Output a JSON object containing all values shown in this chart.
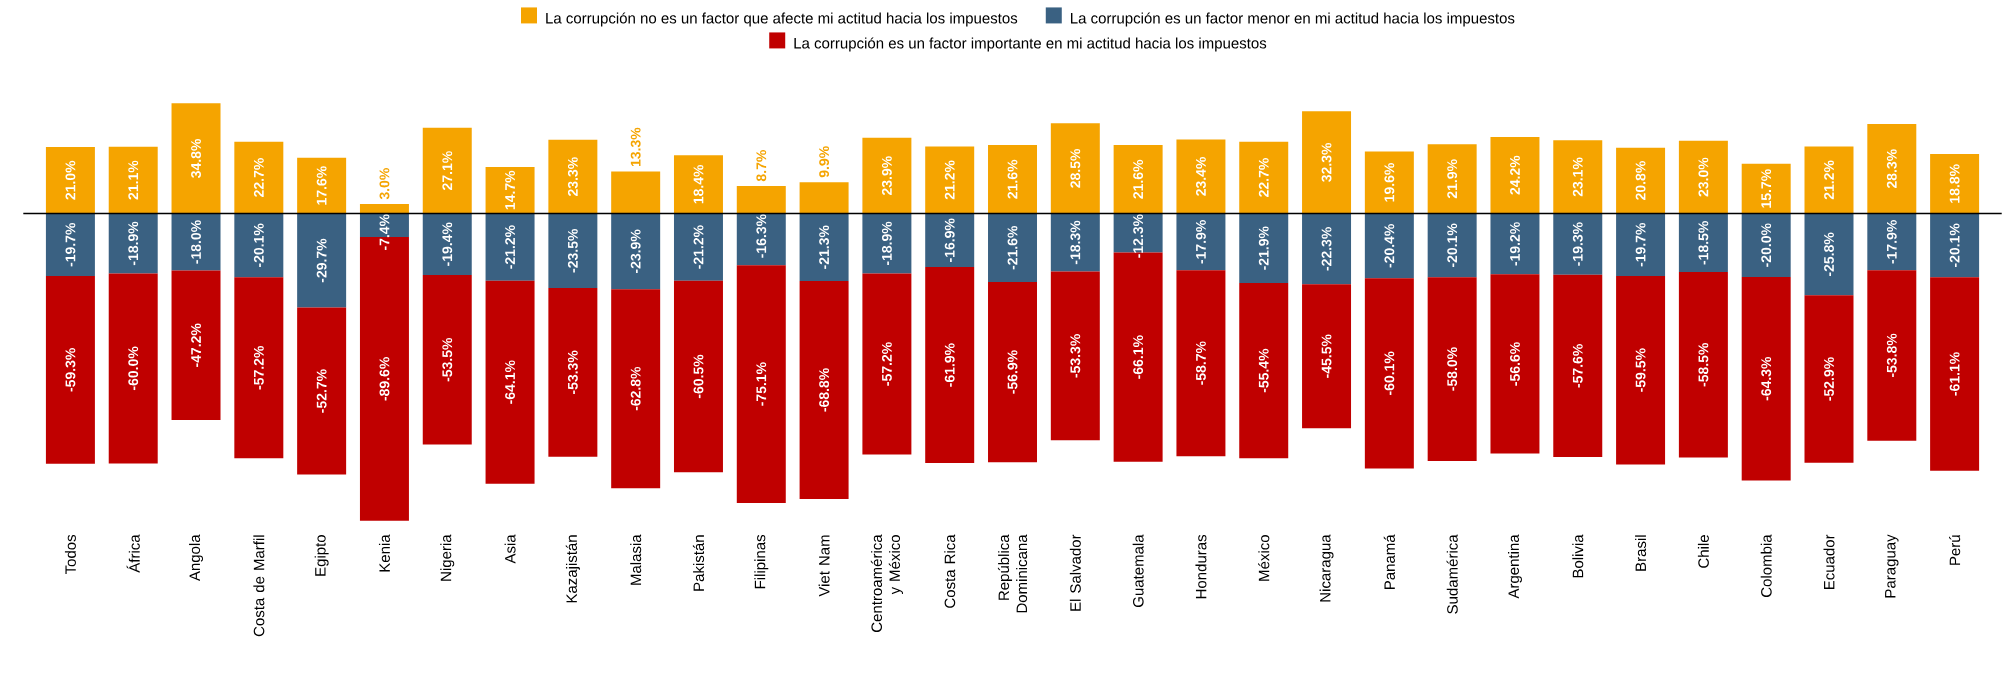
{
  "chart_data": {
    "type": "bar",
    "stacked": true,
    "legend": "top",
    "tick_labels": "x",
    "categories": [
      "Todos",
      "África",
      "Angola",
      "Costa de Marfil",
      "Egipto",
      "Kenia",
      "Nigeria",
      "Asia",
      "Kazajistán",
      "Malasia",
      "Pakistán",
      "Filipinas",
      "Viet Nam",
      "Centroamérica y México",
      "Costa Rica",
      "República Dominicana",
      "El Salvador",
      "Guatemala",
      "Honduras",
      "México",
      "Nicaragua",
      "Panamá",
      "Sudamérica",
      "Argentina",
      "Bolivia",
      "Brasil",
      "Chile",
      "Colombia",
      "Ecuador",
      "Paraguay",
      "Perú"
    ],
    "series": [
      {
        "name": "La corrupción no es un factor que afecte mi actitud hacia los impuestos",
        "color": "#f5a400",
        "values": [
          21.0,
          21.1,
          34.8,
          22.7,
          17.6,
          3.0,
          27.1,
          14.7,
          23.3,
          13.3,
          18.4,
          8.7,
          9.9,
          23.9,
          21.2,
          21.6,
          28.5,
          21.6,
          23.4,
          22.7,
          32.3,
          19.6,
          21.9,
          24.2,
          23.1,
          20.8,
          23.0,
          15.7,
          21.2,
          28.3,
          18.8
        ],
        "value_labels": [
          "21.0%",
          "21.1%",
          "34.8%",
          "22.7%",
          "17.6%",
          "3.0%",
          "27.1%",
          "14.7%",
          "23.3%",
          "13.3%",
          "18.4%",
          "8.7%",
          "9.9%",
          "23.9%",
          "21.2%",
          "21.6%",
          "28.5%",
          "21.6%",
          "23.4%",
          "22.7%",
          "32.3%",
          "19.6%",
          "21.9%",
          "24.2%",
          "23.1%",
          "20.8%",
          "23.0%",
          "15.7%",
          "21.2%",
          "28.3%",
          "18.8%"
        ]
      },
      {
        "name": "La corrupción es un factor menor en mi actitud hacia los impuestos",
        "color": "#3a6182",
        "values": [
          -19.7,
          -18.9,
          -18.0,
          -20.1,
          -29.7,
          -7.4,
          -19.4,
          -21.2,
          -23.5,
          -23.9,
          -21.2,
          -16.3,
          -21.3,
          -18.9,
          -16.9,
          -21.6,
          -18.3,
          -12.3,
          -17.9,
          -21.9,
          -22.3,
          -20.4,
          -20.1,
          -19.2,
          -19.3,
          -19.7,
          -18.5,
          -20.0,
          -25.8,
          -17.9,
          -20.1
        ],
        "value_labels": [
          "-19.7%",
          "-18.9%",
          "-18.0%",
          "-20.1%",
          "-29.7%",
          "-7.4%",
          "-19.4%",
          "-21.2%",
          "-23.5%",
          "-23.9%",
          "-21.2%",
          "-16.3%",
          "-21.3%",
          "-18.9%",
          "-16.9%",
          "-21.6%",
          "-18.3%",
          "-12.3%",
          "-17.9%",
          "-21.9%",
          "-22.3%",
          "-20.4%",
          "-20.1%",
          "-19.2%",
          "-19.3%",
          "-19.7%",
          "-18.5%",
          "-20.0%",
          "-25.8%",
          "-17.9%",
          "-20.1%"
        ]
      },
      {
        "name": "La corrupción es un factor importante en mi actitud hacia los impuestos",
        "color": "#c00000",
        "values": [
          -59.3,
          -60.0,
          -47.2,
          -57.2,
          -52.7,
          -89.6,
          -53.5,
          -64.1,
          -53.3,
          -62.8,
          -60.5,
          -75.1,
          -68.8,
          -57.2,
          -61.9,
          -56.9,
          -53.3,
          -66.1,
          -58.7,
          -55.4,
          -45.5,
          -60.1,
          -58.0,
          -56.6,
          -57.6,
          -59.5,
          -58.5,
          -64.3,
          -52.9,
          -53.8,
          -61.1
        ],
        "value_labels": [
          "-59.3%",
          "-60.0%",
          "-47.2%",
          "-57.2%",
          "-52.7%",
          "-89.6%",
          "-53.5%",
          "-64.1%",
          "-53.3%",
          "-62.8%",
          "-60.5%",
          "-75.1%",
          "-68.8%",
          "-57.2%",
          "-61.9%",
          "-56.9%",
          "-53.3%",
          "-66.1%",
          "-58.7%",
          "-55.4%",
          "-45.5%",
          "-60.1%",
          "-58.0%",
          "-56.6%",
          "-57.6%",
          "-59.5%",
          "-58.5%",
          "-64.3%",
          "-52.9%",
          "-53.8%",
          "-61.1%"
        ]
      }
    ]
  }
}
